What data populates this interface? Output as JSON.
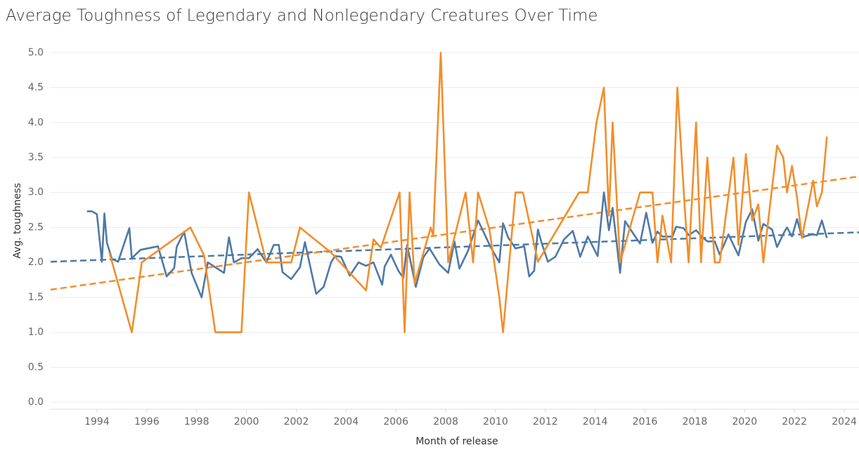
{
  "chart_data": {
    "type": "line",
    "title": "Average Toughness of Legendary and Nonlegendary Creatures Over Time",
    "x_label": "Month of release",
    "y_label": "Avg. toughness",
    "xlim": [
      1992.14,
      2024.59
    ],
    "ylim": [
      -0.1,
      5.25
    ],
    "xticks": [
      1994,
      1996,
      1998,
      2000,
      2002,
      2004,
      2006,
      2008,
      2010,
      2012,
      2014,
      2016,
      2018,
      2020,
      2022,
      2024
    ],
    "yticks": [
      {
        "value": 0,
        "label": "0.0"
      },
      0.5,
      {
        "value": 1,
        "label": "1.0"
      },
      1.5,
      {
        "value": 2,
        "label": "2.0"
      },
      2.5,
      {
        "value": 3,
        "label": "3.0"
      },
      3.5,
      {
        "value": 4,
        "label": "4.0"
      },
      4.5,
      {
        "value": 5,
        "label": "5.0"
      }
    ],
    "grid": true,
    "series": [
      {
        "color": "#4e79a7",
        "x": [
          1993.6,
          1993.8,
          1994.0,
          1994.2,
          1994.3,
          1994.4,
          1994.6,
          1994.85,
          1995.3,
          1995.4,
          1995.75,
          1996.45,
          1996.8,
          1997.1,
          1997.2,
          1997.5,
          1997.8,
          1998.2,
          1998.45,
          1999.1,
          1999.3,
          1999.5,
          1999.8,
          2000.1,
          2000.45,
          2000.8,
          2001.1,
          2001.3,
          2001.45,
          2001.8,
          2002.15,
          2002.35,
          2002.8,
          2003.1,
          2003.4,
          2003.55,
          2003.8,
          2004.15,
          2004.5,
          2004.8,
          2005.1,
          2005.45,
          2005.55,
          2005.8,
          2006.1,
          2006.3,
          2006.45,
          2006.8,
          2007.1,
          2007.35,
          2007.75,
          2008.1,
          2008.35,
          2008.55,
          2008.9,
          2009.3,
          2009.8,
          2010.15,
          2010.3,
          2010.5,
          2010.8,
          2011.15,
          2011.35,
          2011.55,
          2011.7,
          2011.85,
          2012.1,
          2012.4,
          2012.75,
          2013.1,
          2013.4,
          2013.7,
          2014.1,
          2014.35,
          2014.55,
          2014.7,
          2015.0,
          2015.2,
          2015.55,
          2015.8,
          2016.05,
          2016.3,
          2016.5,
          2016.7,
          2017.1,
          2017.25,
          2017.55,
          2017.75,
          2018.05,
          2018.3,
          2018.5,
          2018.8,
          2019.0,
          2019.35,
          2019.75,
          2020.05,
          2020.3,
          2020.55,
          2020.75,
          2021.1,
          2021.3,
          2021.6,
          2021.7,
          2021.9,
          2022.1,
          2022.3,
          2022.7,
          2022.9,
          2023.1,
          2023.3
        ],
        "values": [
          2.73,
          2.73,
          2.69,
          2.01,
          2.7,
          2.28,
          2.05,
          2.01,
          2.49,
          2.06,
          2.18,
          2.23,
          1.8,
          1.92,
          2.22,
          2.44,
          1.85,
          1.5,
          2.0,
          1.85,
          2.36,
          2.0,
          2.06,
          2.06,
          2.19,
          2.0,
          2.25,
          2.25,
          1.86,
          1.76,
          1.93,
          2.29,
          1.55,
          1.65,
          2.0,
          2.09,
          2.08,
          1.81,
          2.0,
          1.95,
          2.0,
          1.68,
          1.94,
          2.11,
          1.88,
          1.78,
          2.25,
          1.65,
          2.07,
          2.2,
          1.97,
          1.85,
          2.3,
          1.91,
          2.17,
          2.6,
          2.22,
          2.0,
          2.56,
          2.36,
          2.2,
          2.23,
          1.8,
          1.88,
          2.47,
          2.28,
          2.01,
          2.08,
          2.33,
          2.45,
          2.08,
          2.37,
          2.09,
          3.0,
          2.46,
          2.78,
          1.85,
          2.59,
          2.4,
          2.27,
          2.71,
          2.28,
          2.44,
          2.37,
          2.37,
          2.51,
          2.49,
          2.39,
          2.46,
          2.36,
          2.3,
          2.3,
          2.11,
          2.4,
          2.1,
          2.58,
          2.76,
          2.31,
          2.55,
          2.47,
          2.22,
          2.44,
          2.5,
          2.37,
          2.62,
          2.36,
          2.4,
          2.39,
          2.6,
          2.35
        ]
      },
      {
        "color": "#f28e2b",
        "x": [
          1994.5,
          1995.4,
          1995.8,
          1997.75,
          1998.3,
          1998.75,
          1999.8,
          2000.1,
          2000.8,
          2001.8,
          2002.15,
          2003.4,
          2004.8,
          2005.1,
          2005.4,
          2006.15,
          2006.35,
          2006.55,
          2006.75,
          2007.4,
          2007.5,
          2007.8,
          2008.1,
          2008.8,
          2009.1,
          2009.3,
          2009.75,
          2010.15,
          2010.3,
          2010.8,
          2011.1,
          2011.7,
          2013.35,
          2013.7,
          2014.05,
          2014.35,
          2014.55,
          2014.7,
          2015.0,
          2015.8,
          2016.3,
          2016.5,
          2016.7,
          2017.05,
          2017.3,
          2017.6,
          2017.75,
          2018.05,
          2018.25,
          2018.5,
          2018.8,
          2019.0,
          2019.55,
          2019.75,
          2020.05,
          2020.3,
          2020.55,
          2020.75,
          2021.3,
          2021.55,
          2021.7,
          2021.9,
          2022.1,
          2022.3,
          2022.75,
          2022.9,
          2023.1,
          2023.3
        ],
        "values": [
          2.14,
          1.0,
          2.0,
          2.5,
          2.1,
          1.0,
          1.0,
          3.0,
          2.0,
          2.0,
          2.5,
          2.14,
          1.6,
          2.33,
          2.21,
          3.0,
          1.0,
          3.0,
          1.7,
          2.5,
          2.38,
          5.0,
          2.0,
          3.0,
          2.0,
          3.0,
          2.48,
          1.5,
          1.0,
          3.0,
          3.0,
          2.01,
          3.0,
          3.0,
          4.0,
          4.5,
          2.67,
          4.0,
          2.0,
          3.0,
          3.0,
          2.0,
          2.67,
          2.0,
          4.5,
          2.75,
          2.0,
          4.0,
          2.0,
          3.5,
          2.0,
          2.0,
          3.5,
          2.25,
          3.55,
          2.6,
          2.83,
          2.0,
          3.67,
          3.5,
          3.0,
          3.38,
          2.93,
          2.35,
          3.17,
          2.8,
          3.0,
          3.8
        ]
      }
    ],
    "trend_lines": [
      {
        "color": "#4e79a7",
        "x": [
          1992.14,
          2024.59
        ],
        "values": [
          2.01,
          2.43
        ]
      },
      {
        "color": "#f28e2b",
        "x": [
          1992.14,
          2024.59
        ],
        "values": [
          1.61,
          3.23
        ]
      }
    ]
  }
}
